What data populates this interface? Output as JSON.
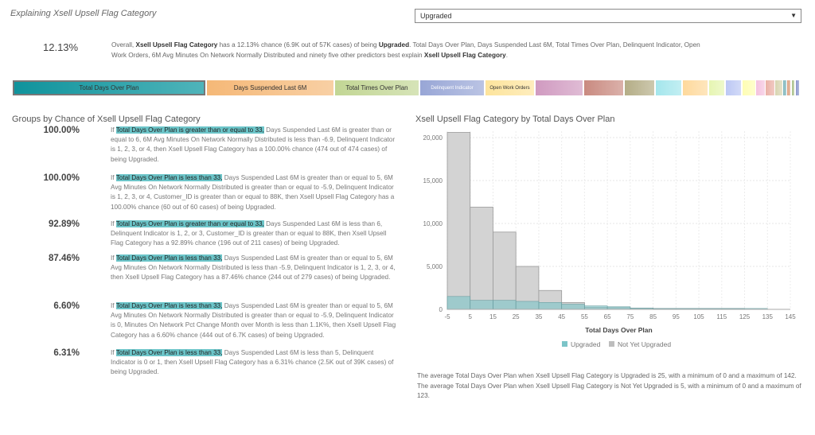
{
  "header": {
    "title": "Explaining Xsell Upsell Flag Category",
    "dropdown_value": "Upgraded"
  },
  "overall": {
    "pct": "12.13%",
    "text_pre": "Overall, ",
    "target": "Xsell Upsell Flag Category",
    "text_mid": " has a 12.13% chance (6.9K out of 57K cases) of being ",
    "level": "Upgraded",
    "text_post": ". Total Days Over Plan, Days Suspended Last 6M, Total Times Over Plan, Delinquent Indicator, Open Work Orders, 6M Avg Minutes On Network Normally Distributed and ninety five other predictors best explain ",
    "target2": "Xsell Upsell Flag Category",
    "end": "."
  },
  "predictors": [
    {
      "label": "Total Days Over Plan",
      "color": "#1a9aa2"
    },
    {
      "label": "Days Suspended Last 6M",
      "color": "#f5b877"
    },
    {
      "label": "Total Times Over Plan",
      "color": "#c2d694"
    },
    {
      "label": "Delinquent Indicator",
      "color": "#98a6d6"
    },
    {
      "label": "Open Work Orders",
      "color": "#fde49c"
    },
    {
      "label": "",
      "color": "#d09ac0"
    },
    {
      "label": "",
      "color": "#c98a80"
    },
    {
      "label": "",
      "color": "#b4ad86"
    },
    {
      "label": "",
      "color": "#a4e6ec"
    },
    {
      "label": "",
      "color": "#fed99c"
    },
    {
      "label": "",
      "color": "#e6f5b2"
    },
    {
      "label": "",
      "color": "#bcc8f4"
    },
    {
      "label": "",
      "color": "#fefdb4"
    },
    {
      "label": "",
      "color": "#f4c2de"
    },
    {
      "label": "",
      "color": "#eab0a6"
    },
    {
      "label": "",
      "color": "#d8d4b0"
    },
    {
      "label": "",
      "color": "#7fb6bc"
    },
    {
      "label": "",
      "color": "#dca080"
    },
    {
      "label": "",
      "color": "#a9c08a"
    },
    {
      "label": "",
      "color": "#8a96cc"
    }
  ],
  "groups_title": "Groups by Chance of Xsell Upsell Flag Category",
  "groups": [
    {
      "pct": "100.00%",
      "if": "If ",
      "hl": "Total Days Over Plan is greater than or equal to 33,",
      "rest": " Days Suspended Last 6M is greater than or equal to 6, 6M Avg Minutes On Network Normally Distributed is less than -6.9, Delinquent Indicator is 1, 2, 3, or 4, then Xsell Upsell Flag Category has a 100.00% chance (474 out of 474 cases) of being Upgraded."
    },
    {
      "pct": "100.00%",
      "if": "If ",
      "hl": "Total Days Over Plan is less than 33,",
      "rest": " Days Suspended Last 6M is greater than or equal to 5, 6M Avg Minutes On Network Normally Distributed is greater than or equal to -5.9, Delinquent Indicator is 1, 2, 3, or 4, Customer_ID is greater than or equal to 88K, then Xsell Upsell Flag Category has a 100.00% chance (60 out of 60 cases) of being Upgraded."
    },
    {
      "pct": "92.89%",
      "if": "If ",
      "hl": "Total Days Over Plan is greater than or equal to 33,",
      "rest": " Days Suspended Last 6M is less than 6, Delinquent Indicator is 1, 2, or 3, Customer_ID is greater than or equal to 88K, then Xsell Upsell Flag Category has a 92.89% chance (196 out of 211 cases) of being Upgraded."
    },
    {
      "pct": "87.46%",
      "if": "If ",
      "hl": "Total Days Over Plan is less than 33,",
      "rest": " Days Suspended Last 6M is greater than or equal to 5, 6M Avg Minutes On Network Normally Distributed is less than -5.9, Delinquent Indicator is 1, 2, 3, or 4, then Xsell Upsell Flag Category has a 87.46% chance (244 out of 279 cases) of being Upgraded."
    },
    {
      "pct": "6.60%",
      "if": "If ",
      "hl": "Total Days Over Plan is less than 33,",
      "rest": " Days Suspended Last 6M is greater than or equal to 5, 6M Avg Minutes On Network Normally Distributed is greater than or equal to -5.9, Delinquent Indicator is 0, Minutes On Network Pct Change Month over Month is less than 1.1K%, then Xsell Upsell Flag Category has a 6.60% chance (444 out of 6.7K cases) of being Upgraded."
    },
    {
      "pct": "6.31%",
      "if": "If ",
      "hl": "Total Days Over Plan is less than 33,",
      "rest": " Days Suspended Last 6M is less than 5, Delinquent Indicator is 0 or 1, then Xsell Upsell Flag Category has a 6.31% chance (2.5K out of 39K cases) of being Upgraded."
    }
  ],
  "chart_data": {
    "type": "bar",
    "title": "Xsell Upsell Flag Category by Total Days Over Plan",
    "xlabel": "Total Days Over Plan",
    "ylabel": "",
    "bin_edges": [
      -5,
      5,
      15,
      25,
      35,
      45,
      55,
      65,
      75,
      85,
      95,
      105,
      115,
      125,
      135,
      145
    ],
    "x_ticks": [
      "-5",
      "5",
      "15",
      "25",
      "35",
      "45",
      "55",
      "65",
      "75",
      "85",
      "95",
      "105",
      "115",
      "125",
      "135",
      "145"
    ],
    "y_ticks": [
      "0",
      "5,000",
      "10,000",
      "15,000",
      "20,000"
    ],
    "ylim": [
      0,
      21000
    ],
    "grid": true,
    "legend_placement": "bottom",
    "series": [
      {
        "name": "Upgraded",
        "color": "#7cc4c8",
        "values": [
          1500,
          1050,
          1050,
          930,
          800,
          600,
          400,
          300,
          150,
          100,
          100,
          100,
          100,
          100
        ]
      },
      {
        "name": "Not Yet Upgraded",
        "color": "#bdbdbd",
        "values": [
          20600,
          11900,
          9000,
          5000,
          2200,
          800,
          250,
          200,
          150,
          100,
          100,
          100,
          100,
          0
        ]
      }
    ]
  },
  "summary": "The average Total Days Over Plan when Xsell Upsell Flag Category is Upgraded is 25, with a minimum of 0 and a maximum of 142. The average Total Days Over Plan when Xsell Upsell Flag Category is Not Yet Upgraded is 5, with a minimum of 0 and a maximum of 123."
}
